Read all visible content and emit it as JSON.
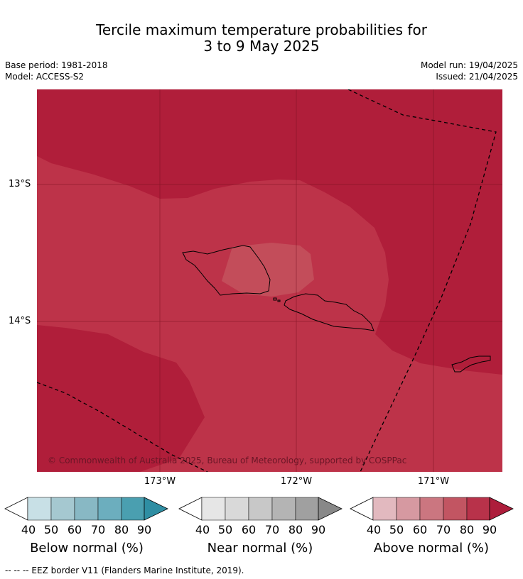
{
  "title_line1": "Tercile maximum temperature probabilities for",
  "title_line2": "3 to 9 May 2025",
  "base_period": "Base period: 1981-2018",
  "model": "Model: ACCESS-S2",
  "model_run": "Model run: 19/04/2025",
  "issued": "Issued: 21/04/2025",
  "lat_labels": [
    "13°S",
    "14°S"
  ],
  "lon_labels": [
    "173°W",
    "172°W",
    "171°W"
  ],
  "copyright": "© Commonwealth of Australia 2025, Bureau of Meteorology, supported by COSPPac",
  "footer": "--  --  -- EEZ border V11 (Flanders Marine Institute, 2019).",
  "colorbars": [
    {
      "label": "Below normal (%)",
      "ticks": [
        "40",
        "50",
        "60",
        "70",
        "80",
        "90"
      ],
      "colors": [
        "#c8e0e6",
        "#a5c8d0",
        "#88b8c4",
        "#6caebe",
        "#4a9fb0",
        "#2f8ea3"
      ]
    },
    {
      "label": "Near normal (%)",
      "ticks": [
        "40",
        "50",
        "60",
        "70",
        "80",
        "90"
      ],
      "colors": [
        "#e6e6e6",
        "#d9d9d9",
        "#c8c8c8",
        "#b4b4b4",
        "#a0a0a0",
        "#888888"
      ]
    },
    {
      "label": "Above normal (%)",
      "ticks": [
        "40",
        "50",
        "60",
        "70",
        "80",
        "90"
      ],
      "colors": [
        "#e2b9bf",
        "#d699a1",
        "#cb7680",
        "#c25562",
        "#b8324a",
        "#ad1d3b"
      ]
    }
  ],
  "map_colors": {
    "dark": "#b01e3a",
    "mid": "#bd3349",
    "light": "#c34d5a",
    "border": "#000000"
  }
}
